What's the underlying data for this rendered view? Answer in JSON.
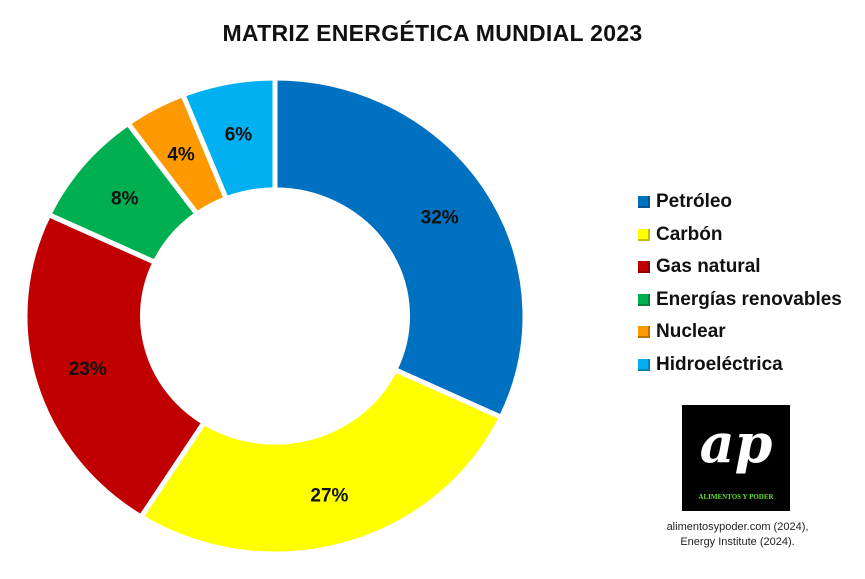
{
  "chart_data": {
    "type": "pie",
    "variant": "donut",
    "title": "MATRIZ ENERGÉTICA MUNDIAL 2023",
    "categories": [
      "Petróleo",
      "Carbón",
      "Gas natural",
      "Energías renovables",
      "Nuclear",
      "Hidroeléctrica"
    ],
    "values": [
      32,
      27,
      23,
      8,
      4,
      6
    ],
    "labels": [
      "32%",
      "27%",
      "23%",
      "8%",
      "4%",
      "6%"
    ],
    "colors": [
      "#0070c0",
      "#ffff00",
      "#c00000",
      "#00b050",
      "#ff9900",
      "#00b0f0"
    ],
    "legend_position": "right",
    "start_angle": "top, clockwise"
  },
  "logo": {
    "text": "ap",
    "brand": "ALIMENTOS Y PODER"
  },
  "source": [
    "alimentosypoder.com (2024),",
    "Energy Institute (2024)."
  ]
}
